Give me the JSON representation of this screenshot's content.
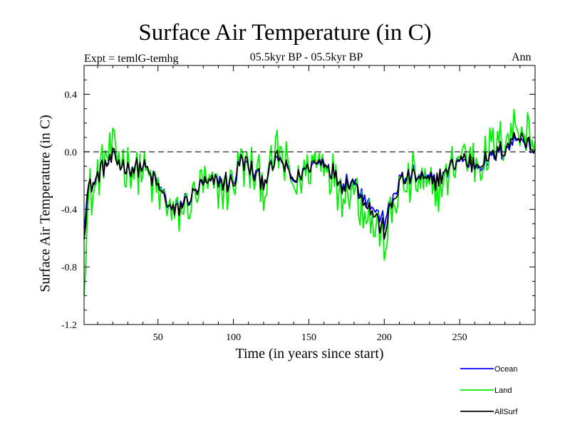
{
  "chart_data": {
    "type": "line",
    "title": "Surface Air Temperature (in C)",
    "subtitle": "05.5kyr BP - 05.5kyr BP",
    "left_label": "Expt = temlG-temhg",
    "right_label": "Ann",
    "xlabel": "Time (in years since start)",
    "ylabel": "Surface Air Temperature (in C)",
    "xlim": [
      1,
      300
    ],
    "ylim": [
      -1.2,
      0.6
    ],
    "xticks": [
      50,
      100,
      150,
      200,
      250
    ],
    "yticks": [
      0.4,
      0.0,
      -0.4,
      -0.8,
      -1.2
    ],
    "ytick_labels": [
      "0.4",
      "0.0",
      "-0.4",
      "-0.8",
      "-1.2"
    ],
    "reference_line": 0.0,
    "series": [
      {
        "name": "Ocean",
        "color": "#0000ff",
        "anchors": [
          [
            1,
            -0.48
          ],
          [
            4,
            -0.24
          ],
          [
            8,
            -0.22
          ],
          [
            12,
            -0.12
          ],
          [
            20,
            -0.05
          ],
          [
            30,
            -0.12
          ],
          [
            40,
            -0.1
          ],
          [
            50,
            -0.22
          ],
          [
            55,
            -0.32
          ],
          [
            60,
            -0.42
          ],
          [
            70,
            -0.32
          ],
          [
            80,
            -0.22
          ],
          [
            90,
            -0.2
          ],
          [
            100,
            -0.2
          ],
          [
            105,
            -0.05
          ],
          [
            110,
            -0.12
          ],
          [
            120,
            -0.2
          ],
          [
            130,
            -0.05
          ],
          [
            140,
            -0.2
          ],
          [
            150,
            -0.1
          ],
          [
            160,
            -0.05
          ],
          [
            170,
            -0.2
          ],
          [
            180,
            -0.2
          ],
          [
            190,
            -0.35
          ],
          [
            200,
            -0.48
          ],
          [
            205,
            -0.35
          ],
          [
            210,
            -0.2
          ],
          [
            220,
            -0.15
          ],
          [
            230,
            -0.2
          ],
          [
            240,
            -0.15
          ],
          [
            250,
            -0.05
          ],
          [
            260,
            -0.1
          ],
          [
            270,
            -0.05
          ],
          [
            280,
            0.02
          ],
          [
            290,
            0.1
          ],
          [
            300,
            0.0
          ]
        ]
      },
      {
        "name": "Land",
        "color": "#00ee00",
        "anchors": [
          [
            1,
            -0.85
          ],
          [
            4,
            -0.3
          ],
          [
            8,
            -0.25
          ],
          [
            12,
            -0.1
          ],
          [
            20,
            0.0
          ],
          [
            30,
            -0.1
          ],
          [
            40,
            -0.12
          ],
          [
            50,
            -0.3
          ],
          [
            55,
            -0.38
          ],
          [
            60,
            -0.45
          ],
          [
            70,
            -0.35
          ],
          [
            80,
            -0.25
          ],
          [
            90,
            -0.25
          ],
          [
            100,
            -0.25
          ],
          [
            105,
            -0.05
          ],
          [
            110,
            -0.1
          ],
          [
            120,
            -0.25
          ],
          [
            130,
            0.0
          ],
          [
            140,
            -0.25
          ],
          [
            150,
            -0.12
          ],
          [
            160,
            -0.05
          ],
          [
            170,
            -0.25
          ],
          [
            180,
            -0.25
          ],
          [
            190,
            -0.45
          ],
          [
            200,
            -0.6
          ],
          [
            205,
            -0.45
          ],
          [
            210,
            -0.25
          ],
          [
            220,
            -0.2
          ],
          [
            230,
            -0.3
          ],
          [
            240,
            -0.2
          ],
          [
            250,
            0.0
          ],
          [
            260,
            -0.05
          ],
          [
            270,
            0.0
          ],
          [
            280,
            0.1
          ],
          [
            290,
            0.22
          ],
          [
            300,
            0.05
          ]
        ]
      },
      {
        "name": "AllSurf",
        "color": "#000000",
        "anchors": [
          [
            1,
            -0.55
          ],
          [
            4,
            -0.25
          ],
          [
            8,
            -0.22
          ],
          [
            12,
            -0.12
          ],
          [
            20,
            -0.04
          ],
          [
            30,
            -0.12
          ],
          [
            40,
            -0.1
          ],
          [
            50,
            -0.24
          ],
          [
            55,
            -0.34
          ],
          [
            60,
            -0.43
          ],
          [
            70,
            -0.33
          ],
          [
            80,
            -0.23
          ],
          [
            90,
            -0.21
          ],
          [
            100,
            -0.21
          ],
          [
            105,
            -0.05
          ],
          [
            110,
            -0.11
          ],
          [
            120,
            -0.21
          ],
          [
            130,
            -0.04
          ],
          [
            140,
            -0.21
          ],
          [
            150,
            -0.1
          ],
          [
            160,
            -0.05
          ],
          [
            170,
            -0.21
          ],
          [
            180,
            -0.21
          ],
          [
            190,
            -0.38
          ],
          [
            200,
            -0.55
          ],
          [
            205,
            -0.38
          ],
          [
            210,
            -0.21
          ],
          [
            220,
            -0.16
          ],
          [
            230,
            -0.22
          ],
          [
            240,
            -0.16
          ],
          [
            250,
            -0.04
          ],
          [
            260,
            -0.09
          ],
          [
            270,
            -0.04
          ],
          [
            280,
            0.04
          ],
          [
            290,
            0.13
          ],
          [
            300,
            0.01
          ]
        ]
      }
    ]
  }
}
